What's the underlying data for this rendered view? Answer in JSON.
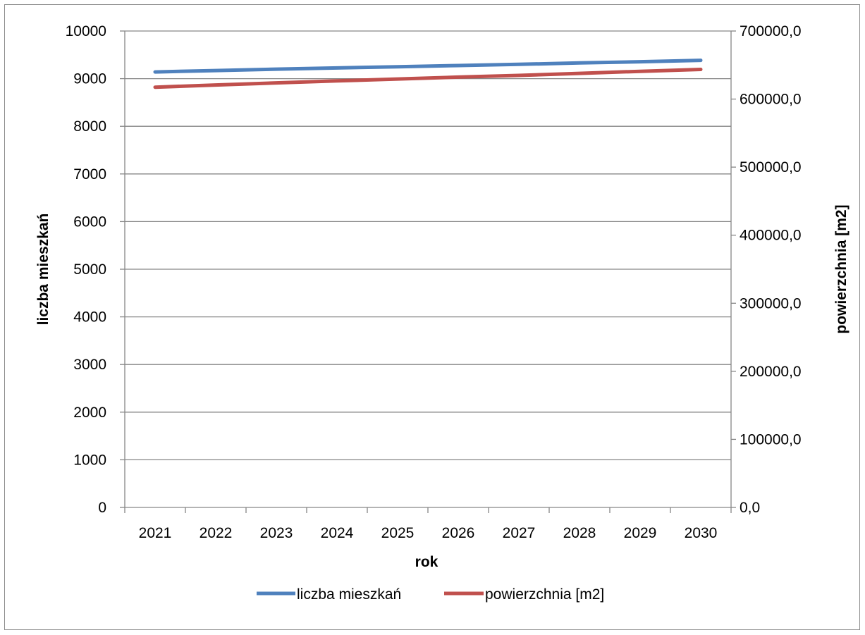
{
  "chart_data": {
    "type": "line",
    "xlabel": "rok",
    "ylabel": "liczba mieszkań",
    "y2label": "powierzchnia [m2]",
    "x": [
      "2021",
      "2022",
      "2023",
      "2024",
      "2025",
      "2026",
      "2027",
      "2028",
      "2029",
      "2030"
    ],
    "ylim": [
      0,
      10000
    ],
    "yticks": [
      "0",
      "1000",
      "2000",
      "3000",
      "4000",
      "5000",
      "6000",
      "7000",
      "8000",
      "9000",
      "10000"
    ],
    "y2lim": [
      0,
      700000
    ],
    "y2ticks": [
      "0,0",
      "100000,0",
      "200000,0",
      "300000,0",
      "400000,0",
      "500000,0",
      "600000,0",
      "700000,0"
    ],
    "grid": true,
    "legend_position": "bottom",
    "series": [
      {
        "name": "liczba mieszkań",
        "axis": "left",
        "color": "#4f81bd",
        "values": [
          9140,
          9170,
          9200,
          9225,
          9250,
          9275,
          9300,
          9330,
          9355,
          9385
        ]
      },
      {
        "name": "powierzchnia [m2]",
        "axis": "right",
        "color": "#c0504d",
        "values": [
          617500,
          620700,
          623800,
          626700,
          629500,
          632300,
          634800,
          637800,
          640800,
          643600
        ]
      }
    ]
  }
}
